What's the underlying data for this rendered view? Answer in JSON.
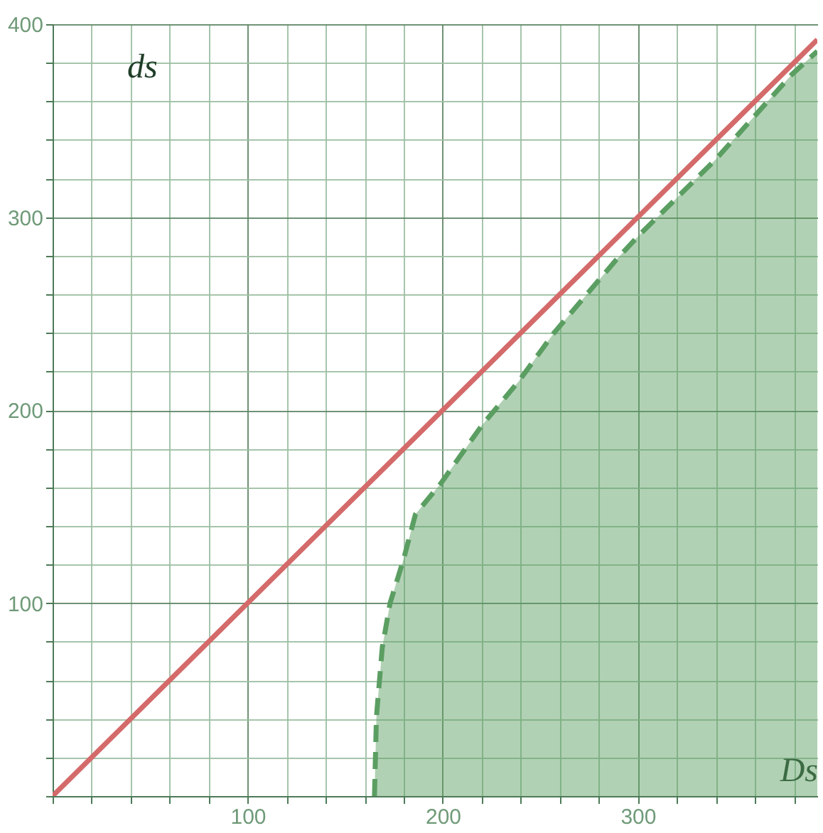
{
  "chart_data": {
    "type": "line",
    "xlabel": "Ds",
    "ylabel": "ds",
    "xlim": [
      0,
      392
    ],
    "ylim": [
      0,
      400
    ],
    "xticks": [
      {
        "value": 0,
        "label": null
      },
      {
        "value": 20,
        "label": null
      },
      {
        "value": 40,
        "label": null
      },
      {
        "value": 60,
        "label": null
      },
      {
        "value": 80,
        "label": null
      },
      100,
      {
        "value": 120,
        "label": null
      },
      {
        "value": 140,
        "label": null
      },
      {
        "value": 160,
        "label": null
      },
      {
        "value": 180,
        "label": null
      },
      200,
      {
        "value": 220,
        "label": null
      },
      {
        "value": 240,
        "label": null
      },
      {
        "value": 260,
        "label": null
      },
      {
        "value": 280,
        "label": null
      },
      300,
      {
        "value": 320,
        "label": null
      },
      {
        "value": 340,
        "label": null
      },
      {
        "value": 360,
        "label": null
      },
      {
        "value": 380,
        "label": null
      }
    ],
    "yticks": [
      {
        "value": 0,
        "label": null
      },
      {
        "value": 20,
        "label": null
      },
      {
        "value": 40,
        "label": null
      },
      {
        "value": 60,
        "label": null
      },
      {
        "value": 80,
        "label": null
      },
      100,
      {
        "value": 120,
        "label": null
      },
      {
        "value": 140,
        "label": null
      },
      {
        "value": 160,
        "label": null
      },
      {
        "value": 180,
        "label": null
      },
      200,
      {
        "value": 220,
        "label": null
      },
      {
        "value": 240,
        "label": null
      },
      {
        "value": 260,
        "label": null
      },
      {
        "value": 280,
        "label": null
      },
      300,
      {
        "value": 320,
        "label": null
      },
      {
        "value": 340,
        "label": null
      },
      {
        "value": 360,
        "label": null
      },
      {
        "value": 380,
        "label": null
      },
      400
    ],
    "grid": true,
    "series": [
      {
        "type": "area",
        "color": "#5b9e62",
        "line_style": "dashed",
        "x": [
          165,
          166,
          169,
          173,
          180,
          186,
          199,
          220,
          239,
          257,
          289,
          300,
          340,
          379,
          392
        ],
        "values": [
          0,
          41,
          77,
          100,
          123,
          146,
          162,
          192,
          215,
          240,
          278,
          290,
          330,
          374,
          386
        ]
      },
      {
        "type": "line",
        "color": "#d46a6a",
        "line_style": "solid",
        "x": [
          0,
          392
        ],
        "values": [
          0,
          392
        ]
      }
    ]
  }
}
